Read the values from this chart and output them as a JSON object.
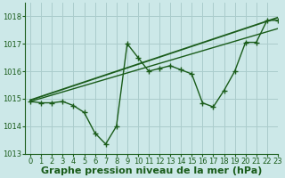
{
  "xlabel": "Graphe pression niveau de la mer (hPa)",
  "background_color": "#cce8e8",
  "grid_color": "#aacccc",
  "line_color": "#1a5c1a",
  "ylim": [
    1013.0,
    1018.5
  ],
  "xlim": [
    -0.5,
    23
  ],
  "yticks": [
    1013,
    1014,
    1015,
    1016,
    1017,
    1018
  ],
  "xticks": [
    0,
    1,
    2,
    3,
    4,
    5,
    6,
    7,
    8,
    9,
    10,
    11,
    12,
    13,
    14,
    15,
    16,
    17,
    18,
    19,
    20,
    21,
    22,
    23
  ],
  "series": [
    {
      "x": [
        0,
        23
      ],
      "y": [
        1014.95,
        1017.95
      ],
      "marker": null,
      "linewidth": 1.3
    },
    {
      "x": [
        0,
        23
      ],
      "y": [
        1014.9,
        1017.55
      ],
      "marker": null,
      "linewidth": 1.0
    },
    {
      "x": [
        0,
        1,
        2,
        3,
        4,
        5,
        6,
        7,
        8,
        9,
        10,
        11,
        12,
        13,
        14,
        15,
        16,
        17,
        18,
        19,
        20,
        21,
        22,
        23
      ],
      "y": [
        1014.9,
        1014.85,
        1014.85,
        1014.9,
        1014.75,
        1014.5,
        1013.75,
        1013.35,
        1014.0,
        1017.0,
        1016.5,
        1016.0,
        1016.1,
        1016.2,
        1016.05,
        1015.9,
        1014.85,
        1014.7,
        1015.3,
        1016.0,
        1017.05,
        1017.05,
        1017.85,
        1017.85
      ],
      "marker": "+",
      "markersize": 4,
      "linewidth": 1.0
    }
  ],
  "xlabel_fontsize": 8,
  "tick_fontsize": 6,
  "figsize": [
    3.2,
    2.0
  ],
  "dpi": 100
}
